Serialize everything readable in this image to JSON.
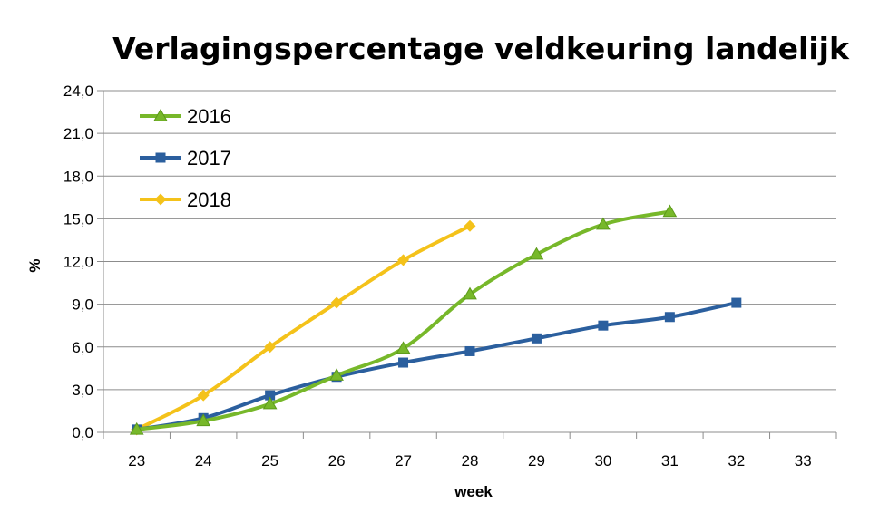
{
  "chart_data": {
    "type": "line",
    "title": "Verlagingspercentage veldkeuring landelijk",
    "xlabel": "week",
    "ylabel": "%",
    "x": [
      23,
      24,
      25,
      26,
      27,
      28,
      29,
      30,
      31,
      32,
      33
    ],
    "xlim": [
      23,
      33
    ],
    "ylim": [
      0,
      24
    ],
    "y_ticks": [
      "0,0",
      "3,0",
      "6,0",
      "9,0",
      "12,0",
      "15,0",
      "18,0",
      "21,0",
      "24,0"
    ],
    "grid": "horizontal",
    "legend_position": "top-left",
    "series": [
      {
        "name": "2016",
        "color": "#77b82a",
        "marker": "triangle",
        "values": [
          0.2,
          0.8,
          2.0,
          4.0,
          5.9,
          9.7,
          12.5,
          14.6,
          15.5,
          null,
          null
        ]
      },
      {
        "name": "2017",
        "color": "#2b5f9e",
        "marker": "square",
        "values": [
          0.2,
          1.0,
          2.6,
          3.9,
          4.9,
          5.7,
          6.6,
          7.5,
          8.1,
          9.1,
          null
        ]
      },
      {
        "name": "2018",
        "color": "#f4c21a",
        "marker": "diamond",
        "values": [
          0.2,
          2.6,
          6.0,
          9.1,
          12.1,
          14.5,
          null,
          null,
          null,
          null,
          null
        ]
      }
    ]
  }
}
